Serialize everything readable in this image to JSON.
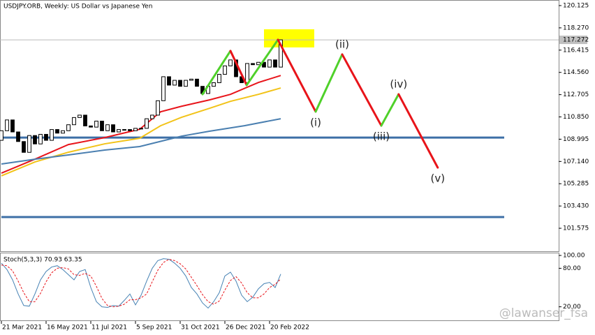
{
  "chart_data": [
    {
      "type": "candlestick",
      "title": "USDJPY.ORB, Weekly:  US Dollar vs Japanese Yen",
      "open": [
        108.9,
        109.7,
        110.6,
        109.6,
        108.8,
        107.9,
        109.3,
        108.6,
        109.4,
        108.9,
        109.8,
        109.5,
        109.7,
        110.2,
        110.8,
        111.0,
        110.1,
        110.0,
        110.5,
        109.7,
        110.2,
        109.6,
        109.8,
        109.8,
        109.7,
        109.9,
        109.9,
        110.7,
        111.0,
        112.2,
        114.2,
        113.5,
        113.9,
        113.4,
        113.9,
        114.0,
        113.4,
        112.8,
        113.4,
        113.7,
        114.4,
        115.1,
        115.6,
        114.2,
        113.7,
        115.3,
        115.2,
        115.4,
        115.0,
        115.6,
        115.0
      ],
      "close": [
        109.7,
        110.6,
        109.6,
        108.8,
        107.9,
        109.3,
        108.6,
        109.4,
        108.9,
        109.8,
        109.5,
        109.7,
        110.2,
        110.8,
        111.0,
        110.1,
        110.0,
        110.5,
        109.7,
        110.2,
        109.6,
        109.8,
        109.8,
        109.7,
        109.9,
        109.9,
        110.7,
        111.0,
        112.2,
        114.2,
        113.5,
        113.9,
        113.4,
        113.9,
        114.0,
        113.4,
        112.8,
        113.4,
        113.7,
        114.4,
        115.1,
        115.6,
        114.2,
        113.7,
        115.3,
        115.2,
        115.4,
        115.0,
        115.6,
        115.0,
        117.272
      ],
      "up_color": "#ffffff",
      "down_color": "#000000",
      "xlim": [
        -0.25,
        99.75
      ],
      "xticks": [
        {
          "value": 0,
          "label": "21 Mar 2021"
        },
        {
          "value": 8,
          "label": "16 May 2021"
        },
        {
          "value": 16,
          "label": "11 Jul 2021"
        },
        {
          "value": 24,
          "label": "5 Sep 2021"
        },
        {
          "value": 32,
          "label": "31 Oct 2021"
        },
        {
          "value": 40,
          "label": "26 Dec 2021"
        },
        {
          "value": 48,
          "label": "20 Feb 2022"
        }
      ],
      "ylim": [
        99.66,
        120.59
      ],
      "yticks": [
        120.125,
        {
          "value": 118.27,
          "label": "118.270"
        },
        116.415,
        {
          "value": 114.56,
          "label": "114.560"
        },
        112.705,
        {
          "value": 110.85,
          "label": "110.850"
        },
        108.995,
        {
          "value": 107.14,
          "label": "107.140"
        },
        105.285,
        {
          "value": 103.43,
          "label": "103.430"
        },
        101.575
      ],
      "current_price": 117.272,
      "moving_averages": [
        {
          "color": "#e8141a",
          "x": [
            0,
            6,
            12,
            18.5,
            24.75,
            28.5,
            32.25,
            37.25,
            41,
            46,
            50
          ],
          "values": [
            106.17,
            107.33,
            108.55,
            109.13,
            109.82,
            111.28,
            111.74,
            112.27,
            112.73,
            113.72,
            114.3
          ]
        },
        {
          "color": "#f2c318",
          "x": [
            0,
            6,
            12,
            18.5,
            24.75,
            28.5,
            32.25,
            37.25,
            41,
            46,
            50
          ],
          "values": [
            105.94,
            107.1,
            107.91,
            108.61,
            109.07,
            110.12,
            110.82,
            111.57,
            112.15,
            112.73,
            113.26
          ]
        },
        {
          "color": "#4a7fb0",
          "x": [
            0,
            6,
            12,
            18.5,
            24.75,
            32.25,
            37.25,
            43.5,
            50
          ],
          "values": [
            106.93,
            107.33,
            107.68,
            108.09,
            108.38,
            109.25,
            109.66,
            110.12,
            110.7
          ]
        }
      ],
      "levels": [
        {
          "color": "#3d6fa6",
          "value": 109.13
        },
        {
          "color": "#3d6fa6",
          "value": 102.51
        }
      ],
      "highlight": {
        "color": "#ffff00",
        "x": [
          47,
          56
        ],
        "range": [
          116.64,
          118.15
        ]
      },
      "waves": {
        "up_color": "#4fd12a",
        "down_color": "#e8141a",
        "x": [
          36,
          41,
          43.9,
          49.5,
          56.25,
          61,
          68,
          71.1,
          78.1
        ],
        "values": [
          112.74,
          116.35,
          113.5,
          117.28,
          111.29,
          116.06,
          110.12,
          112.74,
          106.63
        ],
        "labels": [
          null,
          null,
          null,
          null,
          "(i)",
          "(ii)",
          "(iii)",
          "(iv)",
          "(v)"
        ]
      },
      "watermark": "@lawanser_fsa"
    },
    {
      "type": "line",
      "title": "Stoch(5,3,3) 70.93 63.35",
      "series": [
        {
          "color": "#4682b4",
          "values": [
            88,
            78,
            62,
            40,
            22,
            21,
            40,
            62,
            75,
            82,
            84,
            78,
            70,
            62,
            75,
            78,
            50,
            28,
            20,
            19,
            22,
            21,
            30,
            40,
            23,
            38,
            60,
            80,
            92,
            95,
            94,
            88,
            80,
            68,
            50,
            40,
            26,
            18,
            28,
            42,
            68,
            74,
            60,
            38,
            28,
            35,
            48,
            56,
            58,
            50,
            70.93
          ]
        },
        {
          "color": "#e8141a",
          "dashed": true,
          "values": [
            85,
            84,
            76,
            60,
            42,
            28,
            28,
            41,
            59,
            73,
            80,
            81,
            79,
            70,
            69,
            72,
            68,
            52,
            33,
            22,
            20,
            21,
            24,
            31,
            31,
            34,
            40,
            59,
            77,
            89,
            94,
            92,
            87,
            79,
            66,
            53,
            39,
            28,
            24,
            29,
            46,
            61,
            67,
            57,
            42,
            34,
            34,
            40,
            50,
            55,
            63.35
          ]
        }
      ],
      "ylim": [
        0,
        100
      ],
      "yticks": [
        {
          "value": 100,
          "label": "100.00"
        },
        {
          "value": 80,
          "label": "80.00"
        },
        {
          "value": 20,
          "label": "20.00"
        }
      ]
    }
  ]
}
